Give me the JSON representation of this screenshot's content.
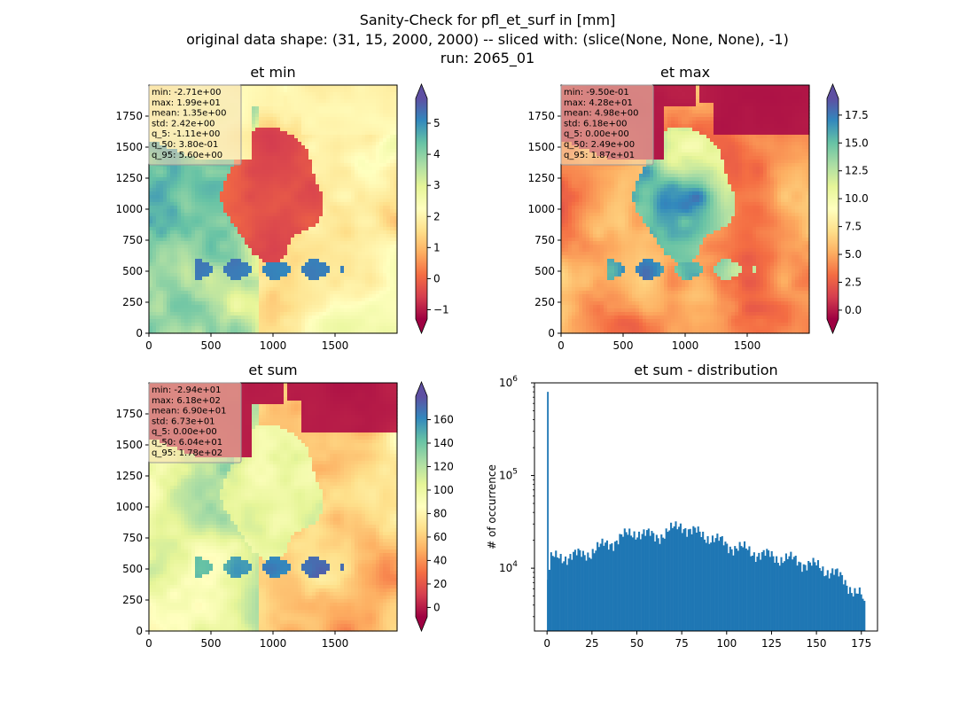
{
  "header": {
    "title_line1": "Sanity-Check for pfl_et_surf in [mm]",
    "title_line2": "original data shape: (31, 15, 2000, 2000) -- sliced with: (slice(None, None, None), -1)",
    "title_line3": "run: 2065_01"
  },
  "colors": {
    "spectral_r": [
      "#9e0142",
      "#d53e4f",
      "#f46d43",
      "#fdae61",
      "#fee08b",
      "#ffffbf",
      "#e6f598",
      "#abdda4",
      "#66c2a5",
      "#3288bd",
      "#5e4fa2"
    ],
    "hist_bar": "#1f77b4",
    "stats_box": "#f5deb3"
  },
  "chart_data": [
    {
      "type": "heatmap",
      "title": "et min",
      "x_ticks": [
        0,
        500,
        1000,
        1500
      ],
      "y_ticks": [
        0,
        250,
        500,
        750,
        1000,
        1250,
        1500,
        1750
      ],
      "xlim": [
        0,
        2000
      ],
      "ylim": [
        0,
        2000
      ],
      "colormap": "Spectral",
      "colorbar": {
        "vmin": -1.3,
        "vmax": 5.8,
        "ticks": [
          -1,
          0,
          1,
          2,
          3,
          4,
          5
        ],
        "extend": "both"
      },
      "stats": [
        "min: -2.71e+00",
        "max: 1.99e+01",
        "mean: 1.35e+00",
        "std: 2.42e+00",
        "q_5: -1.11e+00",
        "q_50: 3.80e-01",
        "q_95: 5.60e+00"
      ]
    },
    {
      "type": "heatmap",
      "title": "et max",
      "x_ticks": [
        0,
        500,
        1000,
        1500
      ],
      "y_ticks": [
        0,
        250,
        500,
        750,
        1000,
        1250,
        1500,
        1750
      ],
      "xlim": [
        0,
        2000
      ],
      "ylim": [
        0,
        2000
      ],
      "colormap": "Spectral",
      "colorbar": {
        "vmin": -0.8,
        "vmax": 19.0,
        "ticks": [
          0.0,
          2.5,
          5.0,
          7.5,
          10.0,
          12.5,
          15.0,
          17.5
        ],
        "tick_labels": [
          "0.0",
          "2.5",
          "5.0",
          "7.5",
          "10.0",
          "12.5",
          "15.0",
          "17.5"
        ],
        "extend": "both"
      },
      "stats": [
        "min: -9.50e-01",
        "max: 4.28e+01",
        "mean: 4.98e+00",
        "std: 6.18e+00",
        "q_5: 0.00e+00",
        "q_50: 2.49e+00",
        "q_95: 1.87e+01"
      ]
    },
    {
      "type": "heatmap",
      "title": "et sum",
      "x_ticks": [
        0,
        500,
        1000,
        1500
      ],
      "y_ticks": [
        0,
        250,
        500,
        750,
        1000,
        1250,
        1500,
        1750
      ],
      "xlim": [
        0,
        2000
      ],
      "ylim": [
        0,
        2000
      ],
      "colormap": "Spectral",
      "colorbar": {
        "vmin": -8,
        "vmax": 180,
        "ticks": [
          0,
          20,
          40,
          60,
          80,
          100,
          120,
          140,
          160
        ],
        "extend": "both"
      },
      "stats": [
        "min: -2.94e+01",
        "max: 6.18e+02",
        "mean: 6.90e+01",
        "std: 6.73e+01",
        "q_5: 0.00e+00",
        "q_50: 6.04e+01",
        "q_95: 1.78e+02"
      ]
    },
    {
      "type": "bar",
      "title": "et sum - distribution",
      "ylabel": "# of occurrence",
      "xlabel": "",
      "y_scale": "log",
      "xlim": [
        -7,
        184
      ],
      "ylim": [
        2100,
        1000000
      ],
      "x_ticks": [
        0,
        25,
        50,
        75,
        100,
        125,
        150,
        175
      ],
      "y_ticks": [
        {
          "value": 10000,
          "label": "10",
          "exp": "4"
        },
        {
          "value": 100000,
          "label": "10",
          "exp": "5"
        },
        {
          "value": 1000000,
          "label": "10",
          "exp": "6"
        }
      ],
      "spike": {
        "x": 0,
        "value": 800000
      },
      "envelope_points": [
        [
          0,
          6500
        ],
        [
          2,
          12500
        ],
        [
          10,
          13500
        ],
        [
          20,
          14000
        ],
        [
          30,
          17000
        ],
        [
          40,
          21000
        ],
        [
          50,
          25000
        ],
        [
          55,
          23000
        ],
        [
          60,
          22000
        ],
        [
          70,
          26000
        ],
        [
          75,
          30000
        ],
        [
          80,
          25000
        ],
        [
          90,
          22000
        ],
        [
          100,
          18000
        ],
        [
          110,
          16000
        ],
        [
          120,
          14000
        ],
        [
          130,
          13000
        ],
        [
          140,
          12000
        ],
        [
          150,
          10500
        ],
        [
          160,
          9000
        ],
        [
          170,
          6000
        ],
        [
          175,
          5000
        ],
        [
          177,
          3500
        ]
      ],
      "x_range": [
        0,
        177.5
      ]
    }
  ]
}
